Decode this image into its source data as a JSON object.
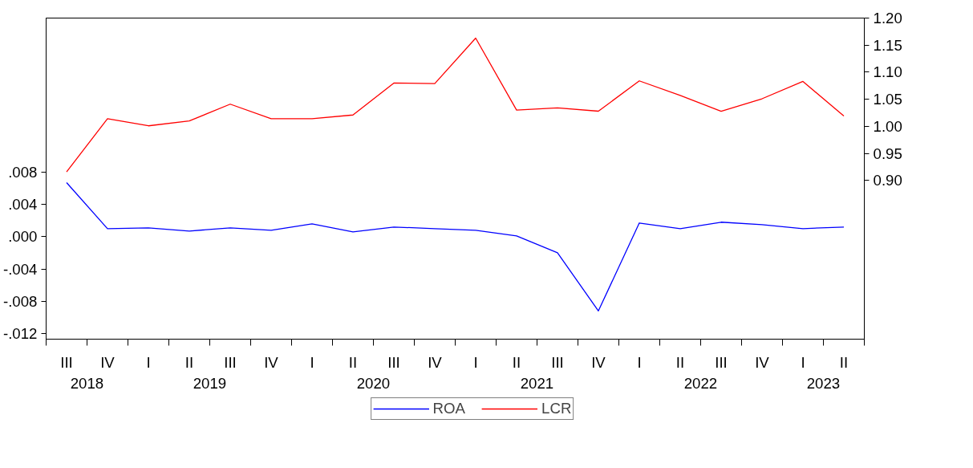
{
  "chart_data": {
    "type": "line",
    "categories": [
      "III",
      "IV",
      "I",
      "II",
      "III",
      "IV",
      "I",
      "II",
      "III",
      "IV",
      "I",
      "II",
      "III",
      "IV",
      "I",
      "II",
      "III",
      "IV",
      "I",
      "II"
    ],
    "annotations": [
      "2018",
      "2019",
      "2020",
      "2021",
      "2022",
      "2023"
    ],
    "series": [
      {
        "name": "ROA",
        "color": "#0000ff",
        "values": [
          0.0067,
          0.001,
          0.0011,
          0.0007,
          0.0011,
          0.0008,
          0.0016,
          0.0006,
          0.0012,
          0.001,
          0.0008,
          0.0001,
          -0.002,
          -0.0092,
          0.0017,
          0.001,
          0.0018,
          0.0015,
          0.001,
          0.0012
        ]
      },
      {
        "name": "LCR",
        "color": "#ff0000",
        "axis": "y2",
        "values": [
          0.916,
          1.014,
          1.001,
          1.01,
          1.041,
          1.014,
          1.014,
          1.021,
          1.08,
          1.079,
          1.163,
          1.03,
          1.034,
          1.028,
          1.084,
          1.057,
          1.028,
          1.051,
          1.083,
          1.019
        ]
      }
    ],
    "ylim": [
      -0.0127,
      0.0271
    ],
    "yticks": [
      {
        "value": -0.012,
        "label": "-.012"
      },
      {
        "value": -0.008,
        "label": "-.008"
      },
      {
        "value": -0.004,
        "label": "-.004"
      },
      {
        "value": 0.0,
        "label": ".000"
      },
      {
        "value": 0.004,
        "label": ".004"
      },
      {
        "value": 0.008,
        "label": ".008"
      }
    ],
    "y2lim": [
      0.607,
      1.2
    ],
    "y2ticks": [
      {
        "value": 0.9,
        "label": "0.90"
      },
      {
        "value": 0.95,
        "label": "0.95"
      },
      {
        "value": 1.0,
        "label": "1.00"
      },
      {
        "value": 1.05,
        "label": "1.05"
      },
      {
        "value": 1.1,
        "label": "1.10"
      },
      {
        "value": 1.15,
        "label": "1.15"
      },
      {
        "value": 1.2,
        "label": "1.20"
      }
    ],
    "grid": false,
    "legend": "bottom",
    "marker": "none",
    "line_style": "solid"
  }
}
